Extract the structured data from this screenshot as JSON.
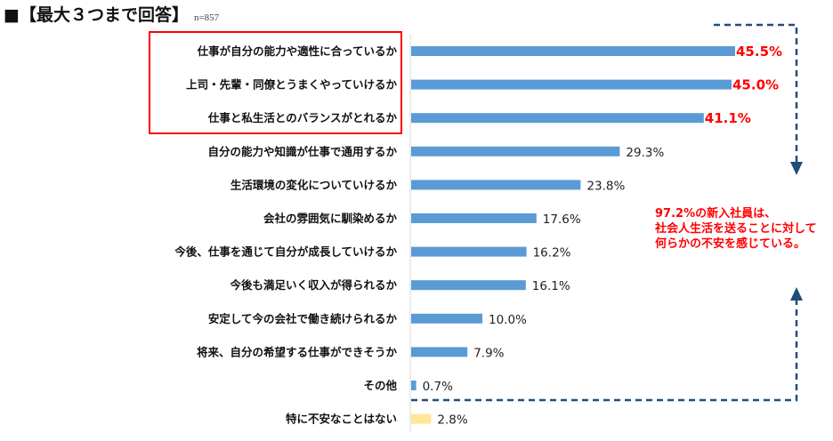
{
  "header": {
    "title": "■【最大３つまで回答】",
    "sample": "n=857"
  },
  "annotation": [
    "97.2%の新入社員は、",
    "社会人生活を送ることに対して",
    "何らかの不安を感じている。"
  ],
  "colors": {
    "bar": "#5b9bd5",
    "bar_last": "#ffe699",
    "highlight": "#ff0000",
    "arrow": "#1f4e79"
  },
  "chart_data": {
    "type": "bar",
    "orientation": "horizontal",
    "categories": [
      "仕事が自分の能力や適性に合っているか",
      "上司・先輩・同僚とうまくやっていけるか",
      "仕事と私生活とのバランスがとれるか",
      "自分の能力や知識が仕事で通用するか",
      "生活環境の変化についていけるか",
      "会社の雰囲気に馴染めるか",
      "今後、仕事を通じて自分が成長していけるか",
      "今後も満足いく収入が得られるか",
      "安定して今の会社で働き続けられるか",
      "将来、自分の希望する仕事ができそうか",
      "その他",
      "特に不安なことはない"
    ],
    "values": [
      45.5,
      45.0,
      41.1,
      29.3,
      23.8,
      17.6,
      16.2,
      16.1,
      10.0,
      7.9,
      0.7,
      2.8
    ],
    "labels": [
      "45.5%",
      "45.0%",
      "41.1%",
      "29.3%",
      "23.8%",
      "17.6%",
      "16.2%",
      "16.1%",
      "10.0%",
      "7.9%",
      "0.7%",
      "2.8%"
    ],
    "highlighted": [
      0,
      1,
      2
    ],
    "xlim": [
      0,
      50
    ]
  }
}
